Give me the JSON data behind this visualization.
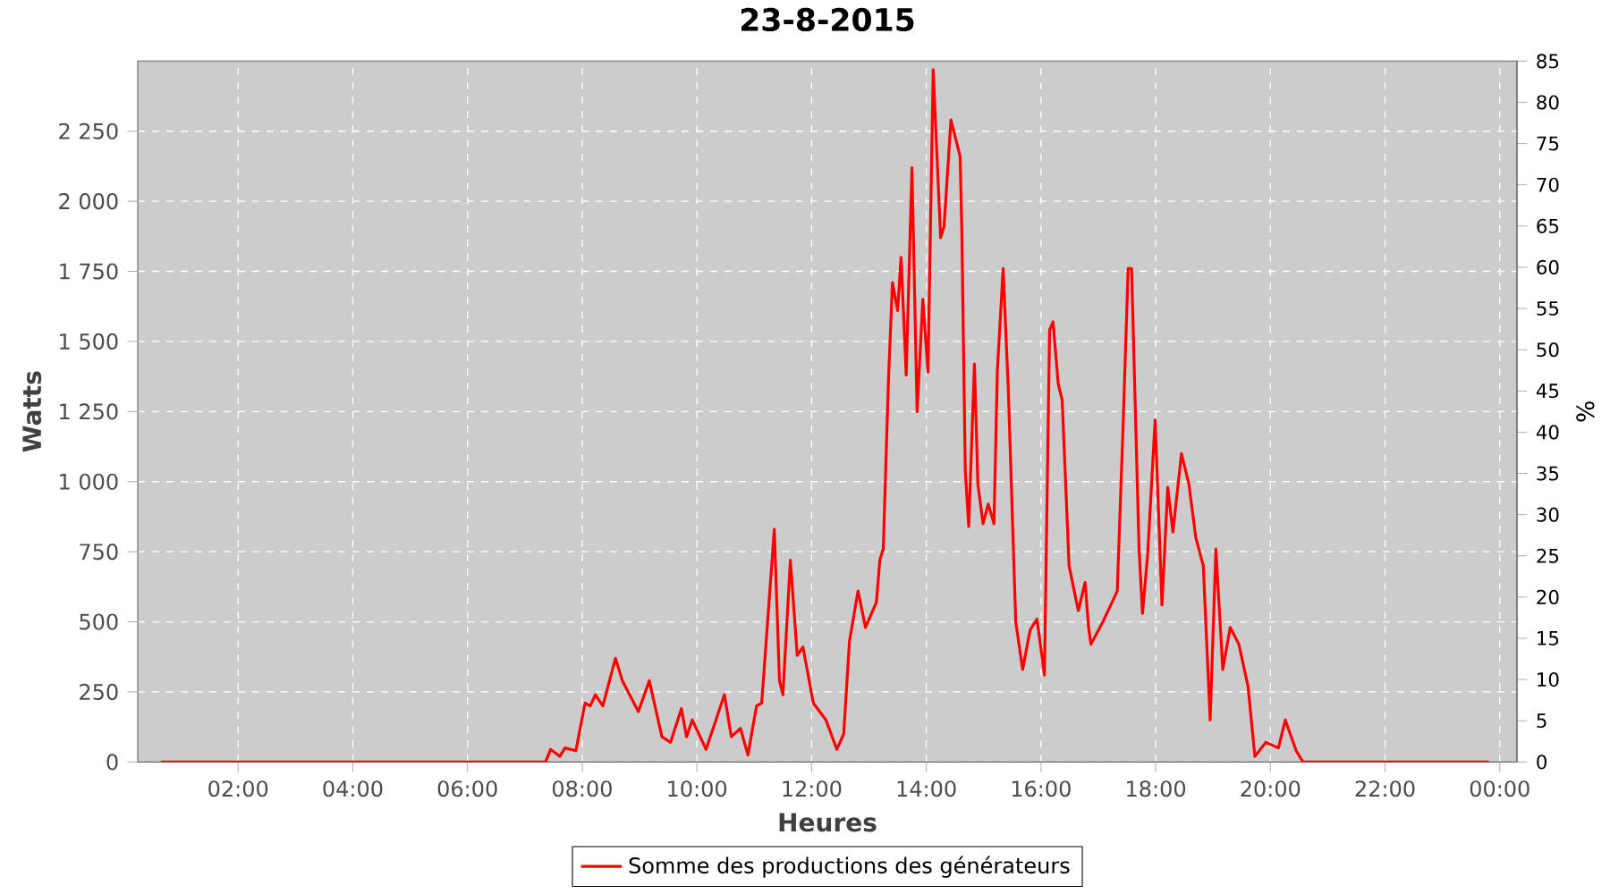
{
  "chart_data": {
    "type": "line",
    "title": "23-8-2015",
    "xlabel": "Heures",
    "ylabel": "Watts",
    "y2label": "%",
    "xlim": [
      0.25,
      24.3
    ],
    "ylim": [
      0,
      2500
    ],
    "y2lim": [
      0,
      85
    ],
    "xticks": [
      {
        "value": 2,
        "label": "02:00"
      },
      {
        "value": 4,
        "label": "04:00"
      },
      {
        "value": 6,
        "label": "06:00"
      },
      {
        "value": 8,
        "label": "08:00"
      },
      {
        "value": 10,
        "label": "10:00"
      },
      {
        "value": 12,
        "label": "12:00"
      },
      {
        "value": 14,
        "label": "14:00"
      },
      {
        "value": 16,
        "label": "16:00"
      },
      {
        "value": 18,
        "label": "18:00"
      },
      {
        "value": 20,
        "label": "20:00"
      },
      {
        "value": 22,
        "label": "22:00"
      },
      {
        "value": 24,
        "label": "00:00"
      }
    ],
    "yticks": [
      0,
      250,
      500,
      750,
      {
        "value": 1000,
        "label": "1 000"
      },
      {
        "value": 1250,
        "label": "1 250"
      },
      {
        "value": 1500,
        "label": "1 500"
      },
      {
        "value": 1750,
        "label": "1 750"
      },
      {
        "value": 2000,
        "label": "2 000"
      },
      {
        "value": 2250,
        "label": "2 250"
      }
    ],
    "y2ticks": [
      0,
      5,
      10,
      15,
      20,
      25,
      30,
      35,
      40,
      45,
      50,
      55,
      60,
      65,
      70,
      75,
      80,
      85
    ],
    "grid": true,
    "legend": "bottom",
    "line_style": "solid",
    "series": [
      {
        "name": "Somme des productions des  générateurs",
        "color": "#ff0000",
        "x": [
          0.66,
          7.36,
          7.45,
          7.61,
          7.7,
          7.89,
          8.05,
          8.14,
          8.23,
          8.36,
          8.58,
          8.7,
          8.98,
          9.17,
          9.39,
          9.54,
          9.73,
          9.82,
          9.92,
          10.16,
          10.48,
          10.6,
          10.76,
          10.89,
          11.04,
          11.13,
          11.35,
          11.44,
          11.5,
          11.63,
          11.75,
          11.85,
          12.03,
          12.25,
          12.44,
          12.56,
          12.66,
          12.81,
          12.94,
          13.13,
          13.19,
          13.25,
          13.34,
          13.41,
          13.5,
          13.56,
          13.65,
          13.75,
          13.84,
          13.94,
          14.03,
          14.12,
          14.25,
          14.31,
          14.43,
          14.59,
          14.62,
          14.68,
          14.74,
          14.84,
          14.9,
          14.99,
          15.08,
          15.18,
          15.24,
          15.34,
          15.43,
          15.56,
          15.68,
          15.81,
          15.93,
          16.06,
          16.15,
          16.21,
          16.3,
          16.37,
          16.49,
          16.65,
          16.77,
          16.83,
          16.87,
          17.08,
          17.24,
          17.33,
          17.43,
          17.52,
          17.58,
          17.71,
          17.77,
          17.86,
          17.99,
          18.11,
          18.21,
          18.3,
          18.45,
          18.58,
          18.7,
          18.83,
          18.95,
          19.05,
          19.17,
          19.3,
          19.45,
          19.61,
          19.73,
          19.92,
          20.14,
          20.26,
          20.45,
          20.57,
          23.81
        ],
        "values": [
          0,
          0,
          45,
          20,
          50,
          40,
          210,
          200,
          240,
          200,
          370,
          290,
          180,
          290,
          90,
          70,
          190,
          90,
          150,
          45,
          240,
          90,
          120,
          25,
          200,
          210,
          830,
          290,
          240,
          720,
          380,
          410,
          210,
          150,
          45,
          100,
          430,
          610,
          480,
          570,
          720,
          760,
          1360,
          1710,
          1610,
          1800,
          1380,
          2120,
          1250,
          1650,
          1390,
          2470,
          1870,
          1910,
          2290,
          2160,
          1890,
          1040,
          840,
          1420,
          990,
          850,
          920,
          850,
          1400,
          1760,
          1330,
          500,
          330,
          470,
          510,
          310,
          1540,
          1570,
          1350,
          1290,
          700,
          540,
          640,
          480,
          420,
          500,
          570,
          610,
          1190,
          1760,
          1760,
          760,
          530,
          740,
          1220,
          560,
          980,
          820,
          1100,
          990,
          800,
          700,
          150,
          760,
          330,
          480,
          420,
          270,
          20,
          70,
          50,
          150,
          40,
          0,
          0
        ]
      }
    ]
  }
}
